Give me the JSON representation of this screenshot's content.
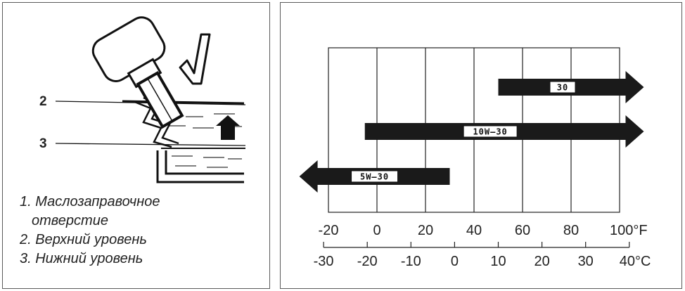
{
  "left_panel": {
    "callouts": [
      "2",
      "3"
    ],
    "legend": [
      "1. Маслозаправочное",
      "отверстие",
      "2. Верхний уровень",
      "3. Нижний уровень"
    ]
  },
  "chart_data": {
    "type": "bar",
    "title": "",
    "fahrenheit_ticks": [
      "-20",
      "0",
      "20",
      "40",
      "60",
      "80",
      "100°F"
    ],
    "celsius_ticks": [
      "-30",
      "-20",
      "-10",
      "0",
      "10",
      "20",
      "30",
      "40°C"
    ],
    "grid": true,
    "bars": [
      {
        "label": "30",
        "from_f": 50,
        "to_f": 110,
        "arrow_left": false,
        "arrow_right": true
      },
      {
        "label": "10W–30",
        "from_f": -5,
        "to_f": 110,
        "arrow_left": false,
        "arrow_right": true
      },
      {
        "label": "5W–30",
        "from_f": -32,
        "to_f": 30,
        "arrow_left": true,
        "arrow_right": false
      }
    ]
  }
}
